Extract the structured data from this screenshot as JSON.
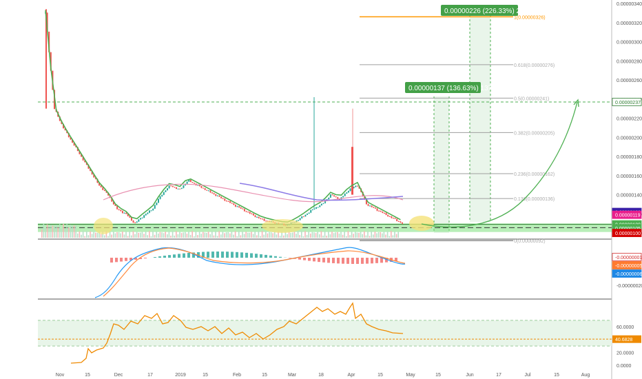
{
  "colors": {
    "up": "#26a69a",
    "down": "#ef5350",
    "ema_green": "#4caf50",
    "ma_purple": "#8c7ae6",
    "ma_pink": "#e991b1",
    "fib_gray": "#9e9e9e",
    "fib_top": "#ff9800",
    "support_zone": "#7ee07e",
    "highlight": "#f5e27a",
    "macd_line": "#2196f3",
    "signal_line": "#ff8a3d",
    "rsi_line": "#ef8a00",
    "rsi_band": "#e8f5e9",
    "arrow": "#4caf50"
  },
  "chart_data": [
    {
      "type": "candlestick",
      "panel": "price",
      "ylim": [
        9.5e-07,
        3.4e-06
      ],
      "y_ticks": [
        "0.00000340",
        "0.00000320",
        "0.00000300",
        "0.00000280",
        "0.00000260",
        "0.00000240",
        "0.00000220",
        "0.00000200",
        "0.00000180",
        "0.00000160",
        "0.00000140",
        "0.00000120",
        "0.00000100"
      ],
      "x_ticks": [
        "Nov",
        "15",
        "Dec",
        "17",
        "2019",
        "15",
        "Feb",
        "15",
        "Mar",
        "18",
        "Apr",
        "15",
        "May",
        "15",
        "Jun",
        "17",
        "Jul",
        "15",
        "Aug"
      ],
      "close_approx": [
        3.3e-06,
        2.3e-06,
        2.1e-06,
        1.95e-06,
        1.8e-06,
        1.65e-06,
        1.5e-06,
        1.4e-06,
        1.25e-06,
        1.2e-06,
        1.1e-06,
        1.18e-06,
        1.25e-06,
        1.4e-06,
        1.5e-06,
        1.45e-06,
        1.55e-06,
        1.5e-06,
        1.45e-06,
        1.4e-06,
        1.35e-06,
        1.3e-06,
        1.25e-06,
        1.2e-06,
        1.15e-06,
        1.12e-06,
        1.1e-06,
        1.08e-06,
        1.12e-06,
        1.18e-06,
        1.25e-06,
        1.3e-06,
        1.4e-06,
        1.35e-06,
        1.45e-06,
        1.5e-06,
        1.3e-06,
        1.25e-06,
        1.2e-06,
        1.15e-06,
        1.1e-06
      ],
      "fib_levels": [
        {
          "label": "1(0.00000326)",
          "value": 3.26e-06
        },
        {
          "label": "0.618(0.00000276)",
          "value": 2.76e-06
        },
        {
          "label": "0.5(0.00000241)",
          "value": 2.41e-06
        },
        {
          "label": "0.382(0.00000205)",
          "value": 2.05e-06
        },
        {
          "label": "0.236(0.00000162)",
          "value": 1.62e-06
        },
        {
          "label": "0.136(0.00000136)",
          "value": 1.36e-06
        },
        {
          "label": "0(0.00000092)",
          "value": 9.2e-07
        }
      ],
      "targets": [
        {
          "text": "0.00000226 (226.33%) 226",
          "value": 3.26e-06
        },
        {
          "text": "0.00000137 (136.63%) 137",
          "value": 2.37e-06
        }
      ],
      "support_zone": [
        1.01e-06,
        1.1e-06
      ],
      "price_labels": [
        {
          "text": "0.00000237",
          "bg": "#ffffff",
          "fg": "#2e7d32",
          "border": "#2e7d32",
          "value": 2.37e-06
        },
        {
          "text": "0.00000122",
          "bg": "#3b1fa8",
          "fg": "#ffffff",
          "value": 1.22e-06
        },
        {
          "text": "0.00000119",
          "bg": "#e91e8c",
          "fg": "#ffffff",
          "value": 1.19e-06
        },
        {
          "text": "0.00000109",
          "bg": "#4caf50",
          "fg": "#ffffff",
          "value": 1.09e-06
        },
        {
          "text": "0.00000105",
          "bg": "#4caf50",
          "fg": "#ffffff",
          "value": 1.05e-06
        },
        {
          "text": "0.00000100",
          "bg": "#d50000",
          "fg": "#ffffff",
          "value": 1e-06
        }
      ]
    },
    {
      "type": "macd",
      "panel": "macd",
      "y_ticks": [
        "-0.00000001",
        "-0.00000005",
        "-0.00000006",
        "-0.00000020"
      ],
      "price_labels": [
        {
          "text": "-0.00000001",
          "bg": "#ffffff",
          "fg": "#d32f2f",
          "border": "#d32f2f"
        },
        {
          "text": "-0.00000005",
          "bg": "#ff7a2f",
          "fg": "#ffffff"
        },
        {
          "text": "-0.00000006",
          "bg": "#1e88e5",
          "fg": "#ffffff"
        }
      ]
    },
    {
      "type": "rsi",
      "panel": "rsi",
      "ylim": [
        0,
        100
      ],
      "y_ticks": [
        "60.0000",
        "20.0000",
        "0.0000"
      ],
      "band": [
        30,
        70
      ],
      "current": 40.6828,
      "price_label": {
        "text": "40.6828",
        "bg": "#ef8a00",
        "fg": "#ffffff"
      }
    }
  ]
}
